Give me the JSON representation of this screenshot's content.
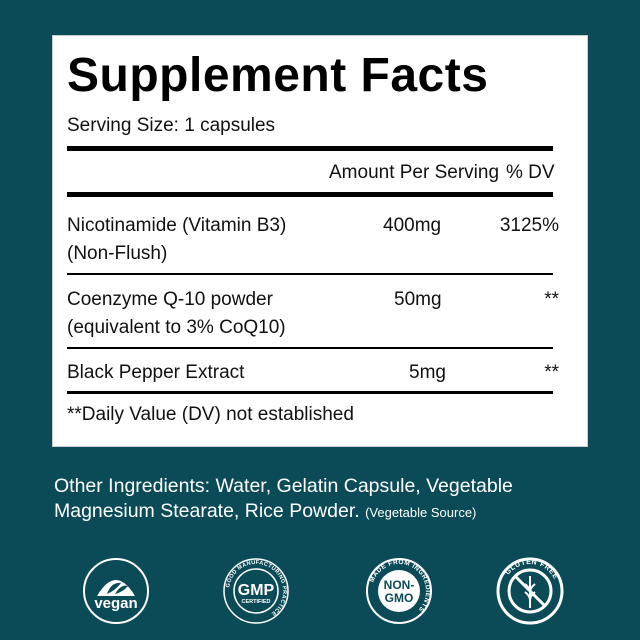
{
  "title": "Supplement Facts",
  "serving_size": "Serving Size: 1 capsules",
  "header": {
    "amount": "Amount Per Serving",
    "dv": "% DV"
  },
  "rows": [
    {
      "name": "Nicotinamide (Vitamin B3)",
      "name2": "(Non-Flush)",
      "amount": "400mg",
      "dv": "3125%"
    },
    {
      "name": "Coenzyme Q-10 powder",
      "name2": "(equivalent to 3% CoQ10)",
      "amount": "50mg",
      "dv": "**"
    },
    {
      "name": "Black Pepper Extract",
      "name2": "",
      "amount": "5mg",
      "dv": "**"
    }
  ],
  "footnote": "**Daily Value (DV) not established",
  "other_ingredients": {
    "line1": "Other Ingredients: Water, Gelatin Capsule, Vegetable",
    "line2": "Magnesium Stearate, Rice Powder.",
    "note": "(Vegetable Source)"
  },
  "badges": [
    {
      "icon": "vegan-leaf-icon",
      "label": "vegan"
    },
    {
      "icon": "gmp-certified-icon",
      "label": "GMP",
      "sub": "CERTIFIED",
      "ring": "GOOD MANUFACTURING PRACTICE"
    },
    {
      "icon": "non-gmo-icon",
      "label": "NON-",
      "label2": "GMO",
      "ring": "MADE FROM INGREDIENTS"
    },
    {
      "icon": "gluten-free-icon",
      "label": "GLUTEN FREE"
    }
  ],
  "colors": {
    "background": "#0b4b58",
    "panel": "#ffffff"
  }
}
